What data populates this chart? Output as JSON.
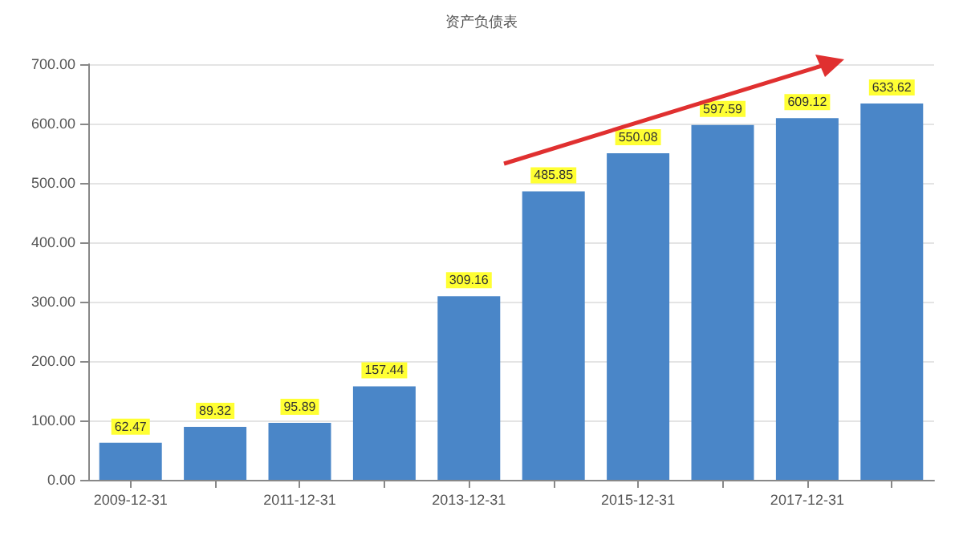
{
  "chart_data": {
    "type": "bar",
    "title": "资产负债表",
    "categories": [
      "2009-12-31",
      null,
      "2011-12-31",
      null,
      "2013-12-31",
      null,
      "2015-12-31",
      null,
      "2017-12-31",
      null
    ],
    "values": [
      62.47,
      89.32,
      95.89,
      157.44,
      309.16,
      485.85,
      550.08,
      597.59,
      609.12,
      633.62
    ],
    "color": "#4a86c8",
    "ylim": [
      0,
      700
    ],
    "yticks": [
      {
        "value": 0,
        "label": "0.00"
      },
      {
        "value": 100,
        "label": "100.00"
      },
      {
        "value": 200,
        "label": "200.00"
      },
      {
        "value": 300,
        "label": "300.00"
      },
      {
        "value": 400,
        "label": "400.00"
      },
      {
        "value": 500,
        "label": "500.00"
      },
      {
        "value": 600,
        "label": "600.00"
      },
      {
        "value": 700,
        "label": "700.00"
      }
    ],
    "grid": "y",
    "data_labels": true
  }
}
